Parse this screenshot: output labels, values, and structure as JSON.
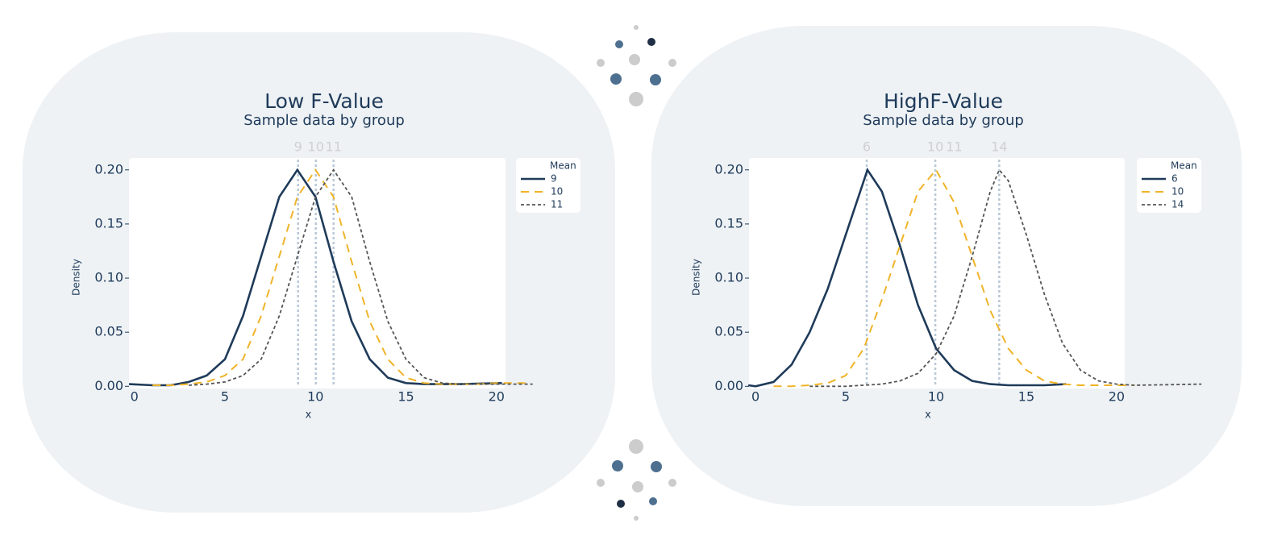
{
  "chart_data": [
    {
      "type": "line",
      "title": "Low F-Value",
      "subtitle": "Sample data by group",
      "x_label": "x",
      "y_label": "Density",
      "legend_title": "Mean",
      "xlim": [
        -0.3,
        20.5
      ],
      "ylim": [
        -0.002,
        0.211
      ],
      "xticks": [
        0,
        5,
        10,
        15,
        20
      ],
      "yticks": [
        {
          "value": 0,
          "label": "0.00"
        },
        {
          "value": 0.05,
          "label": "0.05"
        },
        {
          "value": 0.1,
          "label": "0.10"
        },
        {
          "value": 0.15,
          "label": "0.15"
        },
        {
          "value": 0.2,
          "label": "0.20"
        }
      ],
      "mean_lines": [
        {
          "value": 9.04,
          "label": "9"
        },
        {
          "value": 10.02,
          "label": "10"
        },
        {
          "value": 11.0,
          "label": "11"
        }
      ],
      "series": [
        {
          "name": "9",
          "color": "#1f3b5a",
          "dash": "solid",
          "x": [
            -0.3,
            1,
            2,
            3,
            4,
            5,
            6,
            7,
            8,
            9,
            10,
            11,
            12,
            13,
            14,
            15,
            16,
            17,
            18,
            20.3
          ],
          "values": [
            0.002,
            0.001,
            0.001,
            0.004,
            0.01,
            0.025,
            0.065,
            0.12,
            0.175,
            0.2,
            0.175,
            0.115,
            0.06,
            0.025,
            0.008,
            0.003,
            0.002,
            0.002,
            0.002,
            0.003
          ]
        },
        {
          "name": "10",
          "color": "#f0b429",
          "dash": "dashed",
          "x": [
            1,
            2,
            3,
            4,
            5,
            6,
            7,
            8,
            9,
            10,
            11,
            12,
            13,
            14,
            15,
            16,
            17,
            18,
            19,
            20,
            21.9
          ],
          "values": [
            0.001,
            0.001,
            0.002,
            0.004,
            0.01,
            0.025,
            0.065,
            0.12,
            0.175,
            0.2,
            0.175,
            0.115,
            0.06,
            0.025,
            0.008,
            0.003,
            0.002,
            0.002,
            0.002,
            0.003,
            0.003
          ]
        },
        {
          "name": "11",
          "color": "#555555",
          "dash": "dotted",
          "x": [
            3,
            4,
            5,
            6,
            7,
            8,
            9,
            10,
            11,
            12,
            13,
            14,
            15,
            16,
            17,
            18,
            19,
            20,
            21,
            22
          ],
          "values": [
            0.001,
            0.002,
            0.004,
            0.01,
            0.025,
            0.065,
            0.12,
            0.175,
            0.2,
            0.175,
            0.115,
            0.06,
            0.025,
            0.008,
            0.003,
            0.002,
            0.002,
            0.002,
            0.002,
            0.002
          ]
        }
      ]
    },
    {
      "type": "line",
      "title": "HighF-Value",
      "subtitle": "Sample data by group",
      "x_label": "x",
      "y_label": "Density",
      "legend_title": "Mean",
      "xlim": [
        -0.36,
        20.45
      ],
      "ylim": [
        -0.002,
        0.211
      ],
      "xticks": [
        0,
        5,
        10,
        15,
        20
      ],
      "yticks": [
        {
          "value": 0,
          "label": "0.00"
        },
        {
          "value": 0.05,
          "label": "0.05"
        },
        {
          "value": 0.1,
          "label": "0.10"
        },
        {
          "value": 0.15,
          "label": "0.15"
        },
        {
          "value": 0.2,
          "label": "0.20"
        }
      ],
      "mean_lines": [
        {
          "value": 6.16,
          "label": "6"
        },
        {
          "value": 9.96,
          "label": "10"
        },
        {
          "value": 13.5,
          "label": "14"
        }
      ],
      "annotations": [
        {
          "x": 11,
          "text": "11"
        }
      ],
      "series": [
        {
          "name": "6",
          "color": "#1f3b5a",
          "dash": "solid",
          "x": [
            -0.4,
            0,
            1,
            2,
            3,
            4,
            5,
            6.2,
            7,
            8,
            9,
            10,
            11,
            12,
            13,
            14,
            15,
            16,
            17.2
          ],
          "values": [
            0.001,
            0,
            0.004,
            0.02,
            0.05,
            0.09,
            0.14,
            0.2,
            0.18,
            0.13,
            0.075,
            0.035,
            0.015,
            0.005,
            0.002,
            0.001,
            0.001,
            0.001,
            0.002
          ]
        },
        {
          "name": "10",
          "color": "#f0b429",
          "dash": "dashed",
          "x": [
            1,
            2,
            3,
            4,
            5,
            6,
            7,
            8,
            9,
            10,
            11,
            12,
            13,
            14,
            15,
            16,
            17,
            18,
            20,
            21
          ],
          "values": [
            0,
            0,
            0.001,
            0.003,
            0.01,
            0.035,
            0.08,
            0.13,
            0.18,
            0.2,
            0.17,
            0.12,
            0.07,
            0.035,
            0.015,
            0.005,
            0.002,
            0.001,
            0.001,
            0.001
          ]
        },
        {
          "name": "14",
          "color": "#555555",
          "dash": "dotted",
          "x": [
            3,
            5,
            7,
            8,
            9,
            10,
            11,
            12,
            13,
            13.5,
            14,
            15,
            16,
            17,
            18,
            19,
            20,
            21,
            24.7
          ],
          "values": [
            0,
            0,
            0.002,
            0.005,
            0.012,
            0.03,
            0.065,
            0.12,
            0.18,
            0.2,
            0.19,
            0.14,
            0.085,
            0.04,
            0.015,
            0.005,
            0.002,
            0.001,
            0.002
          ]
        }
      ]
    }
  ]
}
